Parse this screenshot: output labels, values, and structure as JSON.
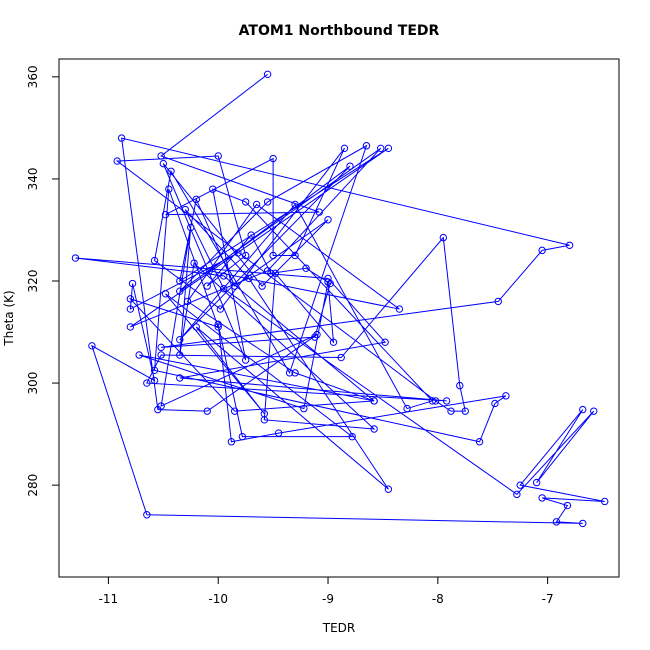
{
  "chart_data": {
    "type": "scatter",
    "title": "ATOM1 Northbound TEDR",
    "xlabel": "TEDR",
    "ylabel": "Theta (K)",
    "xlim": [
      -11.45,
      -6.35
    ],
    "ylim": [
      262.0,
      363.5
    ],
    "xticks": [
      -11,
      -10,
      -9,
      -8,
      -7
    ],
    "yticks": [
      280,
      300,
      320,
      340,
      360
    ],
    "grid": false,
    "line_color": "#0000ff",
    "series": [
      {
        "style": "points-connected",
        "points": [
          [
            -9.55,
            360.5
          ],
          [
            -10.52,
            344.5
          ],
          [
            -9.08,
            333.5
          ],
          [
            -10.48,
            333.0
          ],
          [
            -9.5,
            344.0
          ],
          [
            -9.5,
            325.0
          ],
          [
            -9.3,
            325.0
          ],
          [
            -8.85,
            346.0
          ],
          [
            -9.98,
            314.5
          ],
          [
            -10.58,
            324.0
          ],
          [
            -10.43,
            341.5
          ],
          [
            -9.35,
            302.0
          ],
          [
            -8.65,
            346.5
          ],
          [
            -9.55,
            335.5
          ],
          [
            -10.35,
            318.0
          ],
          [
            -8.52,
            346.0
          ],
          [
            -9.55,
            322.0
          ],
          [
            -10.8,
            311.0
          ],
          [
            -8.45,
            346.0
          ],
          [
            -10.35,
            320.0
          ],
          [
            -10.2,
            336.0
          ],
          [
            -9.85,
            319.0
          ],
          [
            -9.0,
            332.0
          ],
          [
            -9.6,
            319.0
          ],
          [
            -10.5,
            343.0
          ],
          [
            -9.75,
            304.5
          ],
          [
            -10.05,
            338.0
          ],
          [
            -9.75,
            335.5
          ],
          [
            -8.05,
            296.5
          ],
          [
            -8.28,
            295.0
          ],
          [
            -9.3,
            335.0
          ],
          [
            -10.35,
            308.5
          ],
          [
            -8.8,
            342.5
          ],
          [
            -10.08,
            322.0
          ],
          [
            -8.35,
            314.5
          ],
          [
            -9.65,
            335.0
          ],
          [
            -10.28,
            316.0
          ],
          [
            -9.3,
            302.0
          ],
          [
            -8.58,
            296.5
          ],
          [
            -9.95,
            321.0
          ],
          [
            -11.3,
            324.5
          ],
          [
            -9.0,
            320.5
          ],
          [
            -8.48,
            308.0
          ],
          [
            -10.35,
            301.0
          ],
          [
            -7.92,
            296.5
          ],
          [
            -10.65,
            300.0
          ],
          [
            -10.52,
            305.5
          ],
          [
            -8.88,
            305.0
          ],
          [
            -7.95,
            328.5
          ],
          [
            -7.8,
            299.5
          ],
          [
            -7.75,
            294.5
          ],
          [
            -7.88,
            294.5
          ],
          [
            -8.02,
            296.5
          ],
          [
            -10.92,
            343.5
          ],
          [
            -10.0,
            344.5
          ],
          [
            -9.75,
            325.0
          ],
          [
            -10.1,
            319.0
          ],
          [
            -9.7,
            329.0
          ],
          [
            -9.52,
            321.5
          ],
          [
            -9.2,
            322.5
          ],
          [
            -8.98,
            319.5
          ],
          [
            -9.12,
            309.0
          ],
          [
            -10.52,
            307.0
          ],
          [
            -7.45,
            316.0
          ],
          [
            -7.05,
            326.0
          ],
          [
            -6.8,
            327.0
          ],
          [
            -10.88,
            348.0
          ],
          [
            -10.55,
            294.8
          ],
          [
            -10.1,
            294.5
          ],
          [
            -9.1,
            309.5
          ],
          [
            -10.52,
            295.5
          ],
          [
            -10.25,
            330.5
          ],
          [
            -10.35,
            305.5
          ],
          [
            -10.22,
            323.5
          ],
          [
            -8.58,
            291.0
          ],
          [
            -9.58,
            292.8
          ],
          [
            -9.48,
            321.5
          ],
          [
            -8.95,
            308.0
          ],
          [
            -9.0,
            319.8
          ],
          [
            -9.22,
            295.0
          ],
          [
            -10.72,
            305.5
          ],
          [
            -8.58,
            296.5
          ],
          [
            -9.85,
            294.5
          ],
          [
            -10.8,
            316.5
          ],
          [
            -10.0,
            311.0
          ],
          [
            -10.45,
            338.0
          ],
          [
            -10.58,
            302.5
          ],
          [
            -7.62,
            288.5
          ],
          [
            -7.48,
            296.0
          ],
          [
            -7.38,
            297.5
          ],
          [
            -9.45,
            290.2
          ],
          [
            -9.88,
            288.5
          ],
          [
            -10.0,
            311.5
          ],
          [
            -9.78,
            289.5
          ],
          [
            -8.78,
            289.5
          ],
          [
            -10.48,
            317.5
          ],
          [
            -9.58,
            294.0
          ],
          [
            -10.2,
            311.0
          ],
          [
            -8.45,
            279.2
          ],
          [
            -9.72,
            320.5
          ],
          [
            -10.3,
            334.0
          ],
          [
            -9.95,
            318.5
          ],
          [
            -7.28,
            278.2
          ],
          [
            -6.58,
            294.5
          ],
          [
            -7.1,
            280.5
          ],
          [
            -6.68,
            294.8
          ],
          [
            -7.25,
            280.0
          ],
          [
            -6.48,
            276.8
          ],
          [
            -7.05,
            277.5
          ],
          [
            -6.82,
            276.0
          ],
          [
            -6.92,
            272.8
          ],
          [
            -6.68,
            272.5
          ],
          [
            -10.65,
            274.2
          ],
          [
            -11.15,
            307.3
          ],
          [
            -10.58,
            300.5
          ],
          [
            -10.78,
            319.5
          ],
          [
            -10.8,
            314.5
          ],
          [
            -9.82,
            325.5
          ]
        ]
      }
    ]
  }
}
